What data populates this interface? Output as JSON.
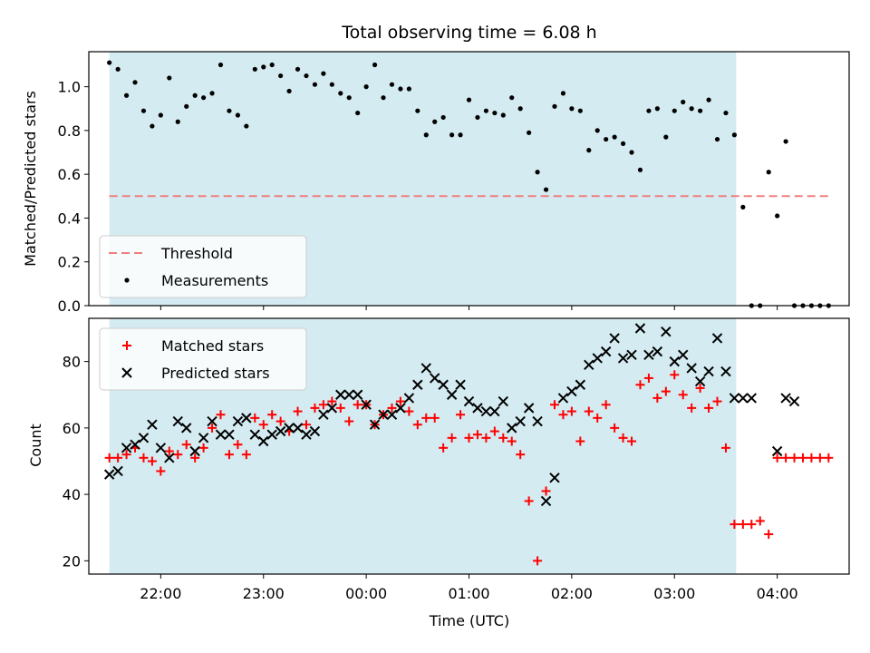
{
  "chart_data": [
    {
      "type": "scatter",
      "title": "Total observing time = 6.08 h",
      "ylabel": "Matched/Predicted stars",
      "xlabel": "",
      "ylim": [
        0,
        1.16
      ],
      "yticks": [
        "0.0",
        "0.2",
        "0.4",
        "0.6",
        "0.8",
        "1.0"
      ],
      "shaded_span": {
        "start": "21:30",
        "end": "03:36",
        "color": "#d4ebf1"
      },
      "legend_position": "lower-left",
      "series": [
        {
          "name": "Threshold",
          "kind": "dashed-line",
          "color": "#f08080",
          "x": [
            "21:30",
            "04:30"
          ],
          "y": [
            0.5,
            0.5
          ]
        },
        {
          "name": "Measurements",
          "kind": "points",
          "color": "#000000",
          "x": [
            "21:30",
            "21:35",
            "21:40",
            "21:45",
            "21:50",
            "21:55",
            "22:00",
            "22:05",
            "22:10",
            "22:15",
            "22:20",
            "22:25",
            "22:30",
            "22:35",
            "22:40",
            "22:45",
            "22:50",
            "22:55",
            "23:00",
            "23:05",
            "23:10",
            "23:15",
            "23:20",
            "23:25",
            "23:30",
            "23:35",
            "23:40",
            "23:45",
            "23:50",
            "23:55",
            "00:00",
            "00:05",
            "00:10",
            "00:15",
            "00:20",
            "00:25",
            "00:30",
            "00:35",
            "00:40",
            "00:45",
            "00:50",
            "00:55",
            "01:00",
            "01:05",
            "01:10",
            "01:15",
            "01:20",
            "01:25",
            "01:30",
            "01:35",
            "01:40",
            "01:45",
            "01:50",
            "01:55",
            "02:00",
            "02:05",
            "02:10",
            "02:15",
            "02:20",
            "02:25",
            "02:30",
            "02:35",
            "02:40",
            "02:45",
            "02:50",
            "02:55",
            "03:00",
            "03:05",
            "03:10",
            "03:15",
            "03:20",
            "03:25",
            "03:30",
            "03:35",
            "03:40",
            "03:45",
            "03:50",
            "03:55",
            "04:00",
            "04:05",
            "04:10",
            "04:15",
            "04:20",
            "04:25",
            "04:30"
          ],
          "y": [
            1.11,
            1.08,
            0.96,
            1.02,
            0.89,
            0.82,
            0.87,
            1.04,
            0.84,
            0.91,
            0.96,
            0.95,
            0.97,
            1.1,
            0.89,
            0.87,
            0.82,
            1.08,
            1.09,
            1.1,
            1.05,
            0.98,
            1.08,
            1.05,
            1.01,
            1.06,
            1.01,
            0.97,
            0.95,
            0.88,
            1.0,
            1.1,
            0.95,
            1.01,
            0.99,
            0.99,
            0.89,
            0.78,
            0.84,
            0.86,
            0.78,
            0.78,
            0.94,
            0.86,
            0.89,
            0.88,
            0.87,
            0.95,
            0.9,
            0.79,
            0.61,
            0.53,
            0.91,
            0.97,
            0.9,
            0.89,
            0.71,
            0.8,
            0.76,
            0.77,
            0.74,
            0.7,
            0.62,
            0.89,
            0.9,
            0.77,
            0.89,
            0.93,
            0.9,
            0.89,
            0.94,
            0.76,
            0.88,
            0.78,
            0.45,
            0.0,
            0.0,
            0.61,
            0.41,
            0.75,
            0.0,
            0.0,
            0.0,
            0.0,
            0.0
          ]
        }
      ]
    },
    {
      "type": "scatter",
      "title": "",
      "ylabel": "Count",
      "xlabel": "Time (UTC)",
      "ylim": [
        16,
        93
      ],
      "yticks": [
        "20",
        "40",
        "60",
        "80"
      ],
      "xticks": [
        "22:00",
        "23:00",
        "00:00",
        "01:00",
        "02:00",
        "03:00",
        "04:00"
      ],
      "shaded_span": {
        "start": "21:30",
        "end": "03:36",
        "color": "#d4ebf1"
      },
      "legend_position": "upper-left",
      "series": [
        {
          "name": "Matched stars",
          "marker": "plus",
          "color": "#ff0000",
          "x": [
            "21:30",
            "21:35",
            "21:40",
            "21:45",
            "21:50",
            "21:55",
            "22:00",
            "22:05",
            "22:10",
            "22:15",
            "22:20",
            "22:25",
            "22:30",
            "22:35",
            "22:40",
            "22:45",
            "22:50",
            "22:55",
            "23:00",
            "23:05",
            "23:10",
            "23:15",
            "23:20",
            "23:25",
            "23:30",
            "23:35",
            "23:40",
            "23:45",
            "23:50",
            "23:55",
            "00:00",
            "00:05",
            "00:10",
            "00:15",
            "00:20",
            "00:25",
            "00:30",
            "00:35",
            "00:40",
            "00:45",
            "00:50",
            "00:55",
            "01:00",
            "01:05",
            "01:10",
            "01:15",
            "01:20",
            "01:25",
            "01:30",
            "01:35",
            "01:40",
            "01:45",
            "01:50",
            "01:55",
            "02:00",
            "02:05",
            "02:10",
            "02:15",
            "02:20",
            "02:25",
            "02:30",
            "02:35",
            "02:40",
            "02:45",
            "02:50",
            "02:55",
            "03:00",
            "03:05",
            "03:10",
            "03:15",
            "03:20",
            "03:25",
            "03:30",
            "03:35",
            "03:40",
            "03:45",
            "03:50",
            "03:55",
            "04:00",
            "04:05",
            "04:10",
            "04:15",
            "04:20",
            "04:25",
            "04:30"
          ],
          "y": [
            51,
            51,
            52,
            54,
            51,
            50,
            47,
            53,
            52,
            55,
            51,
            54,
            60,
            64,
            52,
            55,
            52,
            63,
            61,
            64,
            62,
            59,
            65,
            61,
            66,
            67,
            68,
            66,
            62,
            67,
            67,
            61,
            64,
            66,
            68,
            65,
            61,
            63,
            63,
            54,
            57,
            64,
            57,
            58,
            57,
            59,
            57,
            56,
            52,
            38,
            20,
            41,
            67,
            64,
            65,
            56,
            65,
            63,
            67,
            60,
            57,
            56,
            73,
            75,
            69,
            71,
            76,
            70,
            66,
            72,
            66,
            68,
            54,
            31,
            31,
            31,
            32,
            28,
            51,
            51,
            51,
            51,
            51,
            51,
            51
          ]
        },
        {
          "name": "Predicted stars",
          "marker": "x",
          "color": "#000000",
          "x": [
            "21:30",
            "21:35",
            "21:40",
            "21:45",
            "21:50",
            "21:55",
            "22:00",
            "22:05",
            "22:10",
            "22:15",
            "22:20",
            "22:25",
            "22:30",
            "22:35",
            "22:40",
            "22:45",
            "22:50",
            "22:55",
            "23:00",
            "23:05",
            "23:10",
            "23:15",
            "23:20",
            "23:25",
            "23:30",
            "23:35",
            "23:40",
            "23:45",
            "23:50",
            "23:55",
            "00:00",
            "00:05",
            "00:10",
            "00:15",
            "00:20",
            "00:25",
            "00:30",
            "00:35",
            "00:40",
            "00:45",
            "00:50",
            "00:55",
            "01:00",
            "01:05",
            "01:10",
            "01:15",
            "01:20",
            "01:25",
            "01:30",
            "01:35",
            "01:40",
            "01:45",
            "01:50",
            "01:55",
            "02:00",
            "02:05",
            "02:10",
            "02:15",
            "02:20",
            "02:25",
            "02:30",
            "02:35",
            "02:40",
            "02:45",
            "02:50",
            "02:55",
            "03:00",
            "03:05",
            "03:10",
            "03:15",
            "03:20",
            "03:25",
            "03:30",
            "03:35",
            "03:40",
            "03:45",
            "04:00",
            "04:05",
            "04:10"
          ],
          "y": [
            46,
            47,
            54,
            55,
            57,
            61,
            54,
            51,
            62,
            60,
            53,
            57,
            62,
            58,
            58,
            62,
            63,
            58,
            56,
            58,
            59,
            60,
            60,
            58,
            59,
            64,
            66,
            70,
            70,
            70,
            67,
            61,
            64,
            64,
            66,
            69,
            73,
            78,
            75,
            73,
            70,
            73,
            68,
            66,
            65,
            65,
            68,
            60,
            62,
            66,
            62,
            38,
            45,
            69,
            71,
            73,
            79,
            81,
            83,
            87,
            81,
            82,
            90,
            82,
            83,
            89,
            80,
            82,
            78,
            74,
            77,
            87,
            77,
            69,
            69,
            69,
            53,
            69,
            68
          ]
        }
      ]
    }
  ]
}
